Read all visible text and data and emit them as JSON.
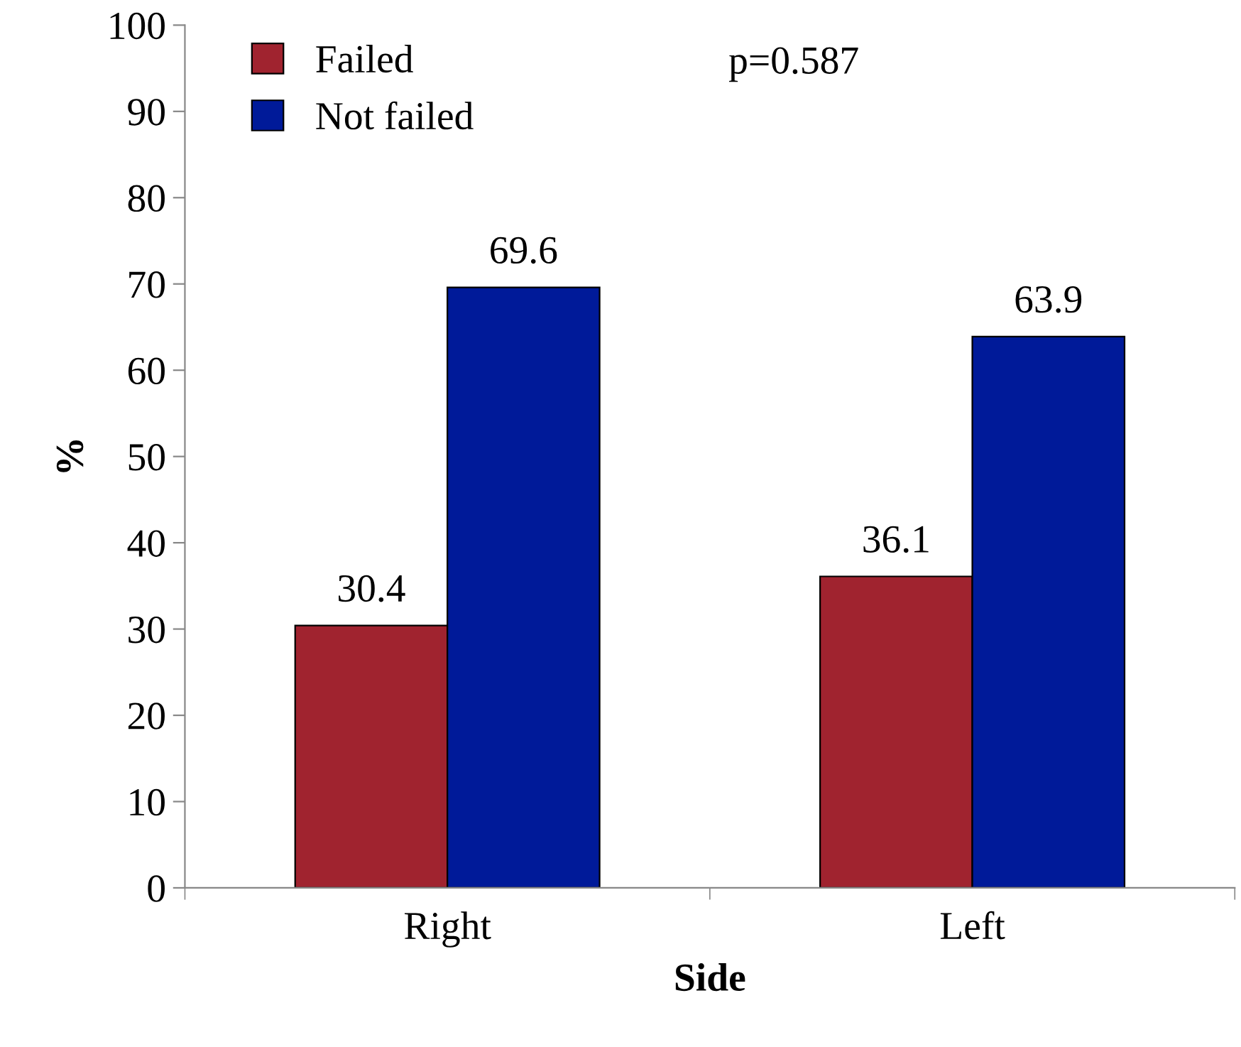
{
  "chart_data": {
    "type": "bar",
    "xlabel": "Side",
    "ylabel": "%",
    "categories": [
      "Right",
      "Left"
    ],
    "series": [
      {
        "name": "Failed",
        "color": "#a0232f",
        "values": [
          30.4,
          36.1
        ]
      },
      {
        "name": "Not failed",
        "color": "#001a99",
        "values": [
          69.6,
          63.9
        ]
      }
    ],
    "ylim": [
      0,
      100
    ],
    "yticks": [
      0,
      10,
      20,
      30,
      40,
      50,
      60,
      70,
      80,
      90,
      100
    ],
    "data_labels": true,
    "legend": "top left",
    "grid": false,
    "annotations": [
      "p=0.587"
    ]
  }
}
